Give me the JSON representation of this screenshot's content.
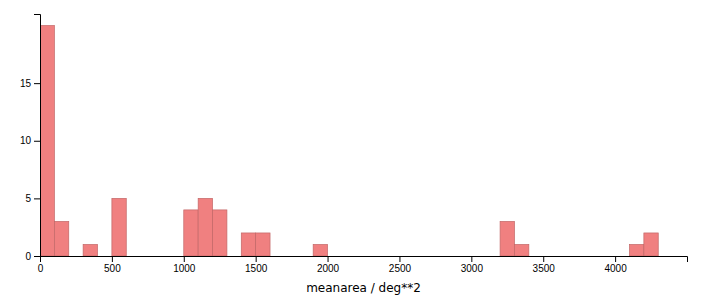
{
  "chart_data": {
    "type": "histogram",
    "bins": [
      0,
      100,
      200,
      300,
      400,
      500,
      600,
      700,
      800,
      900,
      1000,
      1100,
      1200,
      1300,
      1400,
      1500,
      1600,
      1700,
      1800,
      1900,
      2000,
      2100,
      2200,
      2300,
      2400,
      2500,
      2600,
      2700,
      2800,
      2900,
      3000,
      3100,
      3200,
      3300,
      3400,
      3500,
      3600,
      3700,
      3800,
      3900,
      4000,
      4100,
      4200,
      4300,
      4400
    ],
    "values": [
      20,
      3,
      0,
      1,
      0,
      5,
      0,
      0,
      0,
      0,
      4,
      5,
      4,
      0,
      2,
      2,
      0,
      0,
      0,
      1,
      0,
      0,
      0,
      0,
      0,
      0,
      0,
      0,
      0,
      0,
      0,
      0,
      3,
      1,
      0,
      0,
      0,
      0,
      0,
      0,
      0,
      1,
      2,
      0
    ],
    "color": "#f08080",
    "xlabel": "meanarea / deg**2",
    "xlim": [
      0,
      4500
    ],
    "ylim": [
      0,
      21
    ],
    "xticks": [
      0,
      500,
      1000,
      1500,
      2000,
      2500,
      3000,
      3500,
      4000
    ],
    "yticks": [
      0,
      5,
      10,
      15
    ],
    "grid": false
  }
}
